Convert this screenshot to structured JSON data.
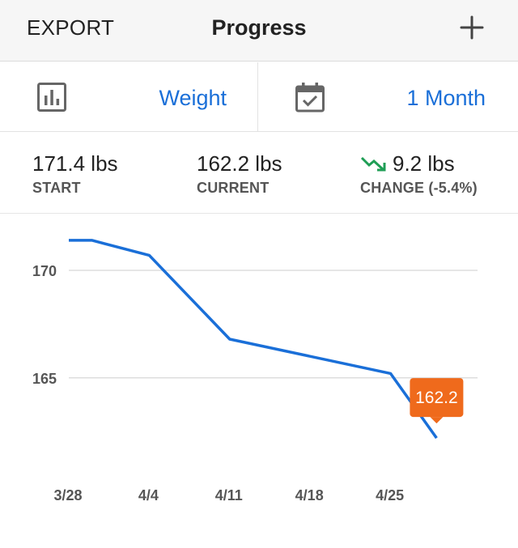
{
  "header": {
    "export_label": "EXPORT",
    "title": "Progress",
    "add_icon": "plus-icon"
  },
  "filters": {
    "metric": {
      "icon": "bar-chart-icon",
      "label": "Weight"
    },
    "range": {
      "icon": "calendar-check-icon",
      "label": "1 Month"
    }
  },
  "stats": {
    "start": {
      "value": "171.4 lbs",
      "label": "START"
    },
    "current": {
      "value": "162.2 lbs",
      "label": "CURRENT"
    },
    "change": {
      "icon": "trend-down-icon",
      "value": "9.2 lbs",
      "label": "CHANGE (-5.4%)"
    }
  },
  "colors": {
    "accent": "#1a6fd8",
    "line": "#1a6fd8",
    "tooltip": "#ef6a1c",
    "trend_down": "#1f9e55"
  },
  "chart_data": {
    "type": "line",
    "x": [
      "3/28",
      "3/30",
      "4/4",
      "4/11",
      "4/25",
      "4/29"
    ],
    "values": [
      171.4,
      171.4,
      170.7,
      166.8,
      165.2,
      162.2
    ],
    "x_ticks": [
      "3/28",
      "4/4",
      "4/11",
      "4/18",
      "4/25"
    ],
    "y_ticks": [
      170,
      165
    ],
    "ylim": [
      161.3,
      172.6
    ],
    "grid": true,
    "title": "",
    "xlabel": "",
    "ylabel": "",
    "tooltip": "162.2"
  }
}
